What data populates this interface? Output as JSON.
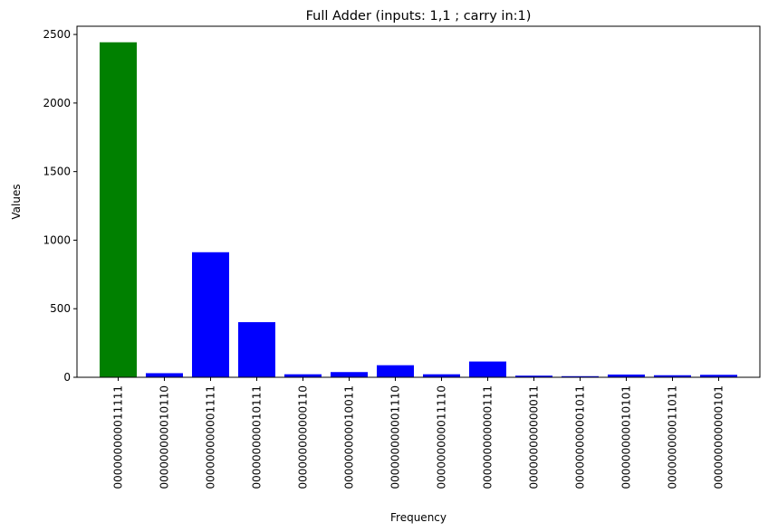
{
  "chart_data": {
    "type": "bar",
    "title": "Full Adder (inputs: 1,1 ; carry in:1)",
    "xlabel": "Frequency",
    "ylabel": "Values",
    "ylim": [
      0,
      2560
    ],
    "yticks": [
      0,
      500,
      1000,
      1500,
      2000,
      2500
    ],
    "grid": false,
    "categories": [
      "000000000011111",
      "000000000010110",
      "000000000001111",
      "000000000010111",
      "000000000000110",
      "000000000010011",
      "000000000001110",
      "000000000011110",
      "000000000000111",
      "000000000000011",
      "000000000001011",
      "000000000010101",
      "000000000011011",
      "000000000000101"
    ],
    "values": [
      2443,
      30,
      912,
      402,
      22,
      38,
      88,
      22,
      115,
      12,
      8,
      20,
      15,
      18
    ],
    "colors": [
      "#008000",
      "#0000ff",
      "#0000ff",
      "#0000ff",
      "#0000ff",
      "#0000ff",
      "#0000ff",
      "#0000ff",
      "#0000ff",
      "#0000ff",
      "#0000ff",
      "#0000ff",
      "#0000ff",
      "#0000ff"
    ]
  }
}
